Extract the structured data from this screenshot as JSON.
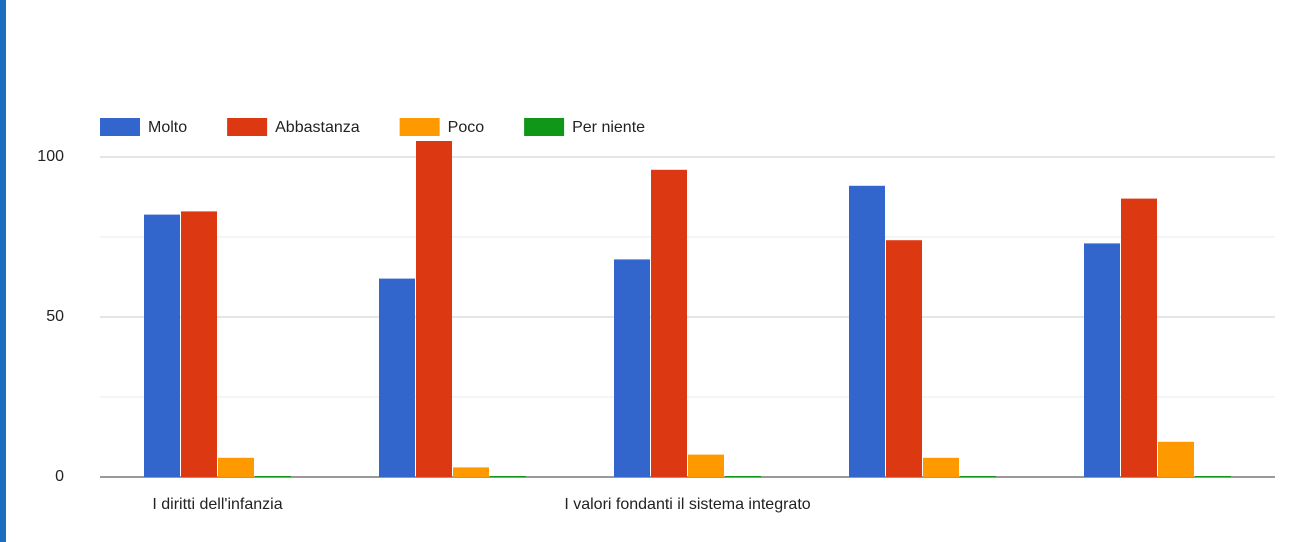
{
  "chart_data": {
    "type": "bar",
    "categories": [
      "I diritti dell'infanzia",
      null,
      "I valori fondanti il sistema integrato",
      null,
      null
    ],
    "series": [
      {
        "name": "Molto",
        "color": "#3366cc",
        "values": [
          82,
          62,
          68,
          91,
          73
        ]
      },
      {
        "name": "Abbastanza",
        "color": "#dc3912",
        "values": [
          83,
          105,
          96,
          74,
          87
        ]
      },
      {
        "name": "Poco",
        "color": "#ff9900",
        "values": [
          6,
          3,
          7,
          6,
          11
        ]
      },
      {
        "name": "Per niente",
        "color": "#109618",
        "values": [
          0,
          0,
          0,
          0,
          0
        ]
      }
    ],
    "ylim": [
      0,
      110
    ],
    "yticks": [
      0,
      50,
      100
    ],
    "minor_yticks": [
      25,
      75
    ],
    "grid": true,
    "legend": "top"
  }
}
